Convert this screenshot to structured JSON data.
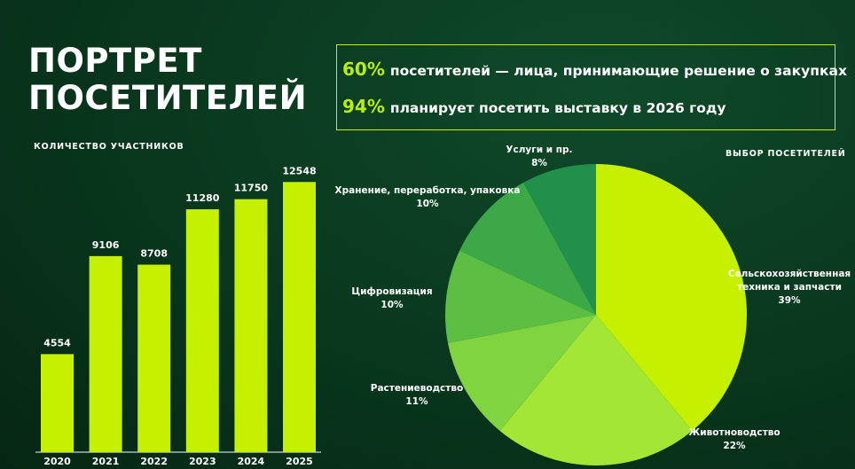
{
  "title": {
    "line1": "ПОРТРЕТ",
    "line2": "ПОСЕТИТЕЛЕЙ"
  },
  "stats": [
    {
      "percent": "60%",
      "text": "посетителей — лица, принимающие решение о закупках"
    },
    {
      "percent": "94%",
      "text": "планирует посетить выставку в 2026 году"
    }
  ],
  "colors": {
    "accent": "#b8ee0a",
    "background": "#0a3a1f"
  },
  "chart_data": [
    {
      "type": "bar",
      "title": "КОЛИЧЕСТВО УЧАСТНИКОВ",
      "categories": [
        "2020",
        "2021",
        "2022",
        "2023",
        "2024",
        "2025"
      ],
      "values": [
        4554,
        9106,
        8708,
        11280,
        11750,
        12548
      ],
      "ylim": [
        0,
        15000
      ],
      "grid": false,
      "bar_color": "#c5f000"
    },
    {
      "type": "pie",
      "title": "ВЫБОР ПОСЕТИТЕЛЕЙ",
      "slices": [
        {
          "label": "Сельскохозяйственная техника и запчасти",
          "lines": [
            "Сельскохозяйственная",
            "техника и запчасти"
          ],
          "value": 39,
          "display": "39%",
          "color": "#c5f000"
        },
        {
          "label": "Животноводство",
          "lines": [
            "Животноводство"
          ],
          "value": 22,
          "display": "22%",
          "color": "#a3e635"
        },
        {
          "label": "Растениеводство",
          "lines": [
            "Растениеводство"
          ],
          "value": 11,
          "display": "11%",
          "color": "#7fd43f"
        },
        {
          "label": "Цифровизация",
          "lines": [
            "Цифровизация"
          ],
          "value": 10,
          "display": "10%",
          "color": "#5cbf44"
        },
        {
          "label": "Хранение, переработка, упаковка",
          "lines": [
            "Хранение, переработка, упаковка"
          ],
          "value": 10,
          "display": "10%",
          "color": "#3da848"
        },
        {
          "label": "Услуги и пр.",
          "lines": [
            "Услуги и пр."
          ],
          "value": 8,
          "display": "8%",
          "color": "#21904a"
        }
      ]
    }
  ]
}
